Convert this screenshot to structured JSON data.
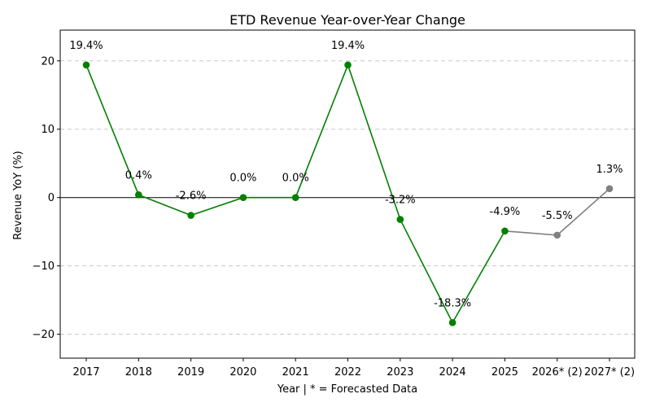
{
  "chart_data": {
    "type": "line",
    "title": "ETD Revenue Year-over-Year Change",
    "xlabel": "Year | * = Forecasted Data",
    "ylabel": "Revenue YoY (%)",
    "ylim": [
      -23.5,
      24.5
    ],
    "yticks": [
      -20,
      -10,
      0,
      10,
      20
    ],
    "grid": "horizontal-dashed",
    "categories": [
      "2017",
      "2018",
      "2019",
      "2020",
      "2021",
      "2022",
      "2023",
      "2024",
      "2025",
      "2026* (2)",
      "2027* (2)"
    ],
    "values": [
      19.4,
      0.4,
      -2.6,
      0.0,
      0.0,
      19.4,
      -3.2,
      -18.3,
      -4.9,
      -5.5,
      1.3
    ],
    "data_labels": [
      "19.4%",
      "0.4%",
      "-2.6%",
      "0.0%",
      "0.0%",
      "19.4%",
      "-3.2%",
      "-18.3%",
      "-4.9%",
      "-5.5%",
      "1.3%"
    ],
    "series": [
      {
        "segment": "actual",
        "start_index": 0,
        "end_index": 8,
        "color": "#008000"
      },
      {
        "segment": "forecast",
        "start_index": 8,
        "end_index": 10,
        "color": "#808080"
      }
    ],
    "zero_line": true
  }
}
